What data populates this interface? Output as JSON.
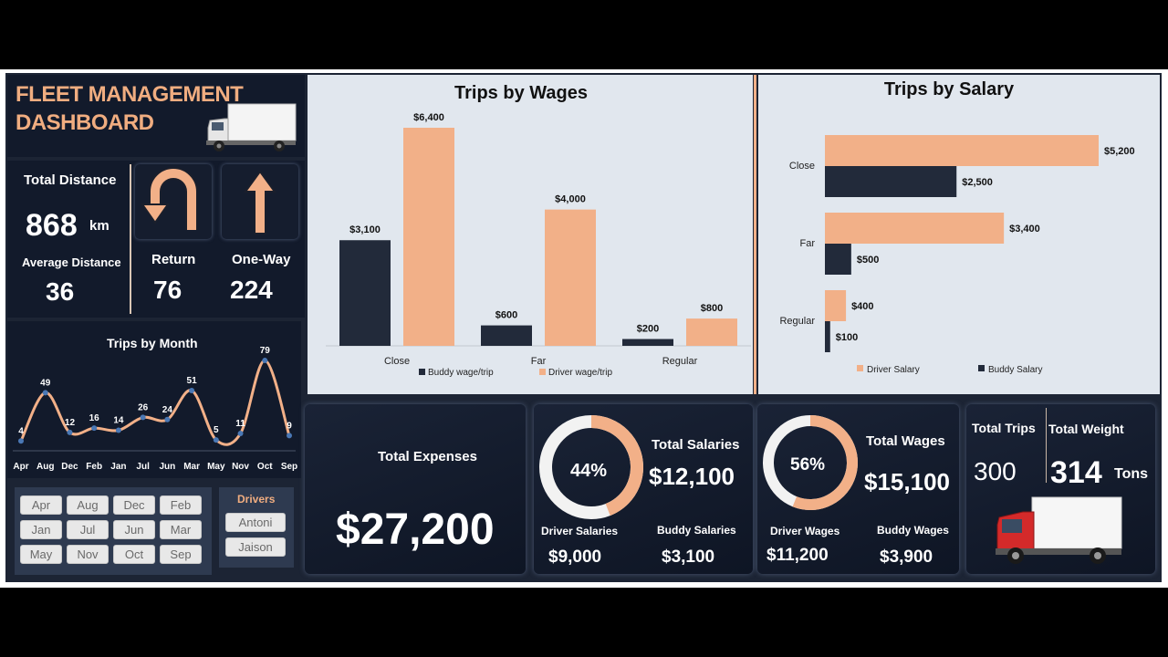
{
  "header": {
    "title_line1": "FLEET MANAGEMENT",
    "title_line2": "DASHBOARD"
  },
  "distance": {
    "total_label": "Total Distance",
    "total_value": "868",
    "total_unit": "km",
    "avg_label": "Average Distance",
    "avg_value": "36"
  },
  "trip_types": {
    "return_label": "Return",
    "return_value": "76",
    "oneway_label": "One-Way",
    "oneway_value": "224"
  },
  "trips_by_month": {
    "title": "Trips by Month",
    "months": [
      "Apr",
      "Aug",
      "Dec",
      "Feb",
      "Jan",
      "Jul",
      "Jun",
      "Mar",
      "May",
      "Nov",
      "Oct",
      "Sep"
    ],
    "values": [
      4,
      49,
      12,
      16,
      14,
      26,
      24,
      51,
      5,
      11,
      79,
      9
    ]
  },
  "slicers": {
    "months": [
      "Apr",
      "Aug",
      "Dec",
      "Feb",
      "Jan",
      "Jul",
      "Jun",
      "Mar",
      "May",
      "Nov",
      "Oct",
      "Sep"
    ],
    "drivers_title": "Drivers",
    "drivers": [
      "Antoni",
      "Jaison"
    ]
  },
  "chart_data": [
    {
      "type": "bar",
      "title": "Trips by Wages",
      "categories": [
        "Close",
        "Far",
        "Regular"
      ],
      "series": [
        {
          "name": "Buddy wage/trip",
          "values": [
            3100,
            600,
            200
          ],
          "labels": [
            "$3,100",
            "$600",
            "$200"
          ],
          "color": "#222a3a"
        },
        {
          "name": "Driver wage/trip",
          "values": [
            6400,
            4000,
            800
          ],
          "labels": [
            "$6,400",
            "$4,000",
            "$800"
          ],
          "color": "#f2b088"
        }
      ]
    },
    {
      "type": "bar",
      "orientation": "horizontal",
      "title": "Trips by Salary",
      "categories": [
        "Close",
        "Far",
        "Regular"
      ],
      "series": [
        {
          "name": "Driver Salary",
          "values": [
            5200,
            3400,
            400
          ],
          "labels": [
            "$5,200",
            "$3,400",
            "$400"
          ],
          "color": "#f2b088"
        },
        {
          "name": "Buddy Salary",
          "values": [
            2500,
            500,
            100
          ],
          "labels": [
            "$2,500",
            "$500",
            "$100"
          ],
          "color": "#222a3a"
        }
      ]
    }
  ],
  "expenses": {
    "label": "Total Expenses",
    "value": "$27,200"
  },
  "salaries": {
    "label": "Total Salaries",
    "value": "$12,100",
    "percent": "44%",
    "percent_value": 44,
    "driver_label": "Driver Salaries",
    "driver_value": "$9,000",
    "buddy_label": "Buddy Salaries",
    "buddy_value": "$3,100"
  },
  "wages": {
    "label": "Total Wages",
    "value": "$15,100",
    "percent": "56%",
    "percent_value": 56,
    "driver_label": "Driver Wages",
    "driver_value": "$11,200",
    "buddy_label": "Buddy Wages",
    "buddy_value": "$3,900"
  },
  "totals": {
    "trips_label": "Total Trips",
    "trips_value": "300",
    "weight_label": "Total Weight",
    "weight_value": "314",
    "weight_unit": "Tons"
  },
  "colors": {
    "peach": "#f2b088",
    "navy": "#222a3a",
    "panel": "#121a2b"
  }
}
